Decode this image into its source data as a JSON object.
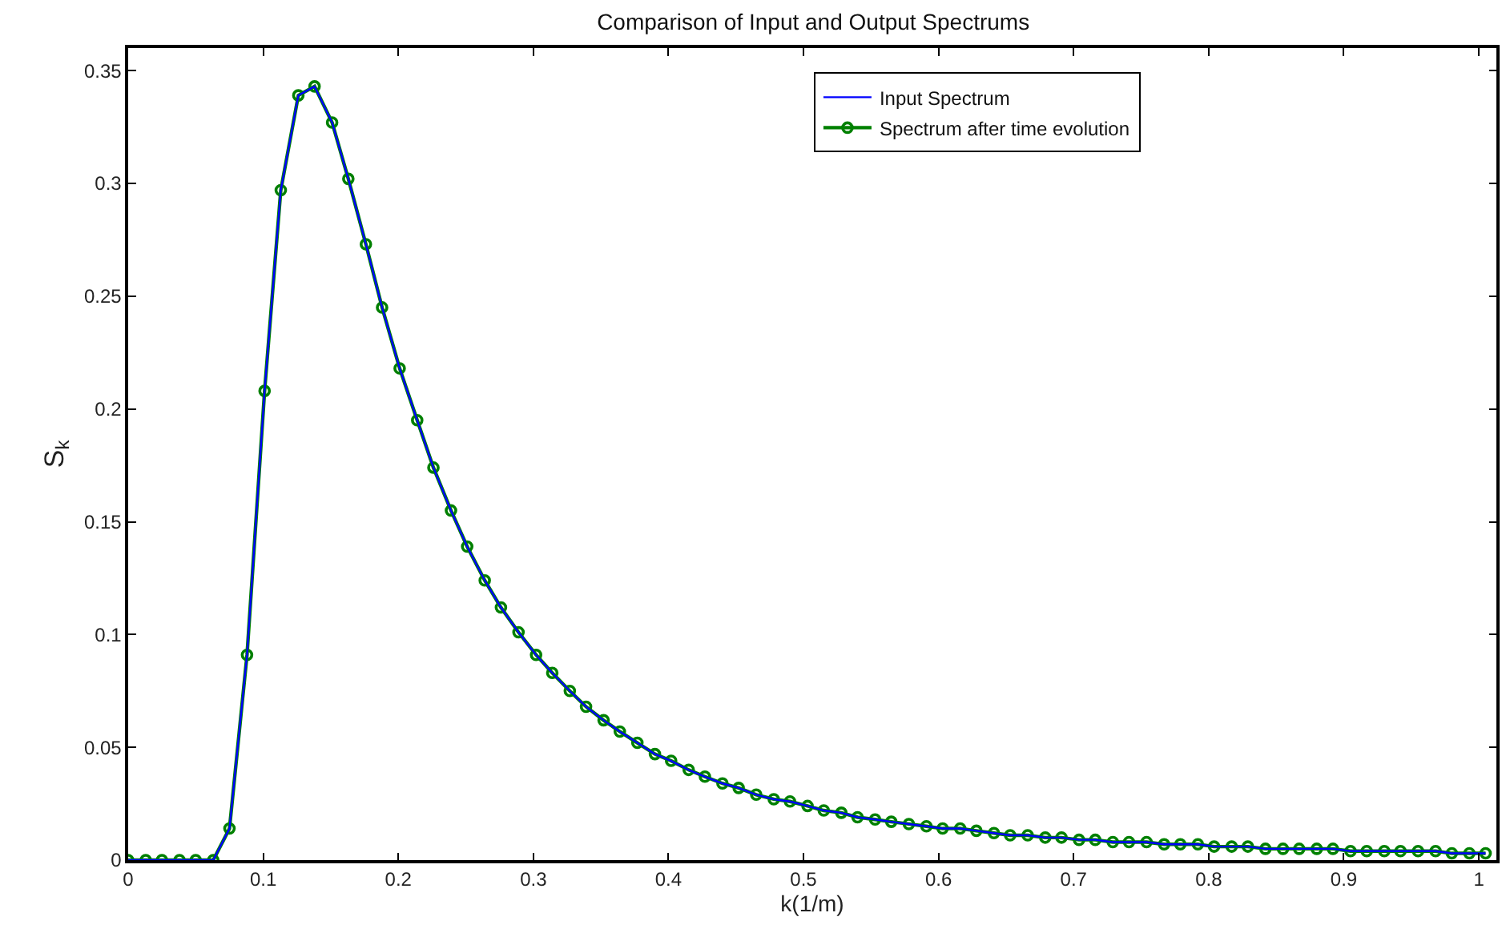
{
  "chart_data": {
    "type": "line",
    "title": "Comparison of Input and Output Spectrums",
    "xlabel": "k(1/m)",
    "ylabel": "S$_{k}$",
    "x": [
      0,
      0.013,
      0.025,
      0.038,
      0.05,
      0.063,
      0.075,
      0.088,
      0.101,
      0.113,
      0.126,
      0.138,
      0.151,
      0.163,
      0.176,
      0.188,
      0.201,
      0.214,
      0.226,
      0.239,
      0.251,
      0.264,
      0.276,
      0.289,
      0.302,
      0.314,
      0.327,
      0.339,
      0.352,
      0.364,
      0.377,
      0.39,
      0.402,
      0.415,
      0.427,
      0.44,
      0.452,
      0.465,
      0.478,
      0.49,
      0.503,
      0.515,
      0.528,
      0.54,
      0.553,
      0.565,
      0.578,
      0.591,
      0.603,
      0.616,
      0.628,
      0.641,
      0.653,
      0.666,
      0.679,
      0.691,
      0.704,
      0.716,
      0.729,
      0.741,
      0.754,
      0.767,
      0.779,
      0.792,
      0.804,
      0.817,
      0.829,
      0.842,
      0.855,
      0.867,
      0.88,
      0.892,
      0.905,
      0.917,
      0.93,
      0.942,
      0.955,
      0.968,
      0.98,
      0.993,
      1.005
    ],
    "series": [
      {
        "name": "Input Spectrum",
        "color": "#0000ff",
        "marker": "none",
        "values": [
          0,
          0,
          0,
          0,
          0,
          0,
          0.014,
          0.091,
          0.208,
          0.297,
          0.339,
          0.343,
          0.327,
          0.302,
          0.273,
          0.245,
          0.218,
          0.195,
          0.174,
          0.155,
          0.139,
          0.124,
          0.112,
          0.101,
          0.091,
          0.083,
          0.075,
          0.068,
          0.062,
          0.057,
          0.052,
          0.047,
          0.044,
          0.04,
          0.037,
          0.034,
          0.032,
          0.029,
          0.027,
          0.026,
          0.024,
          0.022,
          0.021,
          0.019,
          0.018,
          0.017,
          0.016,
          0.015,
          0.014,
          0.014,
          0.013,
          0.012,
          0.011,
          0.011,
          0.01,
          0.01,
          0.009,
          0.009,
          0.008,
          0.008,
          0.008,
          0.007,
          0.007,
          0.007,
          0.006,
          0.006,
          0.006,
          0.005,
          0.005,
          0.005,
          0.005,
          0.005,
          0.004,
          0.004,
          0.004,
          0.004,
          0.004,
          0.004,
          0.003,
          0.003,
          0.003
        ]
      },
      {
        "name": "Spectrum after time evolution",
        "color": "#008000",
        "marker": "circle",
        "values": [
          0,
          0,
          0,
          0,
          0,
          0,
          0.014,
          0.091,
          0.208,
          0.297,
          0.339,
          0.343,
          0.327,
          0.302,
          0.273,
          0.245,
          0.218,
          0.195,
          0.174,
          0.155,
          0.139,
          0.124,
          0.112,
          0.101,
          0.091,
          0.083,
          0.075,
          0.068,
          0.062,
          0.057,
          0.052,
          0.047,
          0.044,
          0.04,
          0.037,
          0.034,
          0.032,
          0.029,
          0.027,
          0.026,
          0.024,
          0.022,
          0.021,
          0.019,
          0.018,
          0.017,
          0.016,
          0.015,
          0.014,
          0.014,
          0.013,
          0.012,
          0.011,
          0.011,
          0.01,
          0.01,
          0.009,
          0.009,
          0.008,
          0.008,
          0.008,
          0.007,
          0.007,
          0.007,
          0.006,
          0.006,
          0.006,
          0.005,
          0.005,
          0.005,
          0.005,
          0.005,
          0.004,
          0.004,
          0.004,
          0.004,
          0.004,
          0.004,
          0.003,
          0.003,
          0.003
        ]
      }
    ],
    "xlim": [
      0,
      1.013
    ],
    "xticks": [
      0,
      0.1,
      0.2,
      0.3,
      0.4,
      0.5,
      0.6,
      0.7,
      0.8,
      0.9,
      1
    ],
    "ylim": [
      0,
      0.36
    ],
    "yticks": [
      0,
      0.05,
      0.1,
      0.15,
      0.2,
      0.25,
      0.3,
      0.35
    ],
    "legend": "top right",
    "line_style": "solid"
  }
}
